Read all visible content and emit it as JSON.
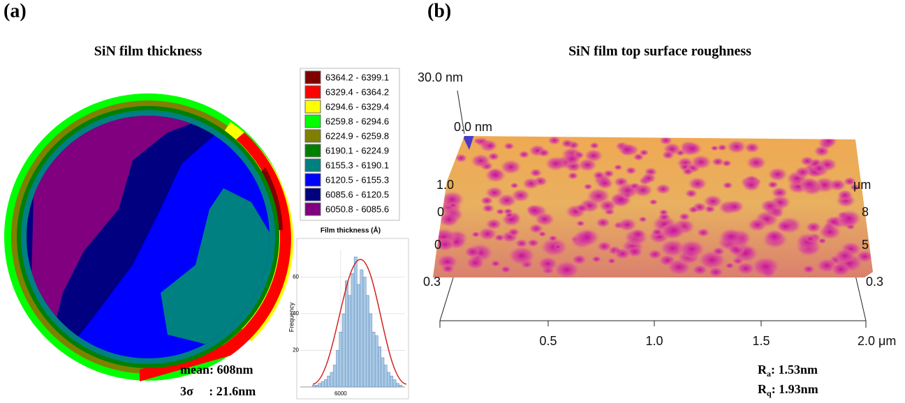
{
  "panel_a": {
    "label": "(a)",
    "title": "SiN film thickness",
    "legend": {
      "items": [
        {
          "label": "6364.2 - 6399.1",
          "color": "#800000"
        },
        {
          "label": "6329.4 - 6364.2",
          "color": "#ff0000"
        },
        {
          "label": "6294.6 - 6329.4",
          "color": "#ffff00"
        },
        {
          "label": "6259.8 - 6294.6",
          "color": "#00ff00"
        },
        {
          "label": "6224.9 - 6259.8",
          "color": "#808000"
        },
        {
          "label": "6190.1 - 6224.9",
          "color": "#008000"
        },
        {
          "label": "6155.3 - 6190.1",
          "color": "#008080"
        },
        {
          "label": "6120.5 - 6155.3",
          "color": "#0000ff"
        },
        {
          "label": "6085.6 - 6120.5",
          "color": "#000080"
        },
        {
          "label": "6050.8 - 6085.6",
          "color": "#800080"
        }
      ],
      "title": "Film thickness (Å)"
    },
    "histogram": {
      "y_label": "Frequency",
      "bins": [
        5905,
        5915,
        5925,
        5935,
        5945,
        5955,
        5965,
        5975,
        5985,
        5995,
        6005,
        6015,
        6025,
        6035,
        6045,
        6055,
        6065,
        6075,
        6085,
        6095,
        6105,
        6115,
        6125,
        6135,
        6145,
        6155,
        6165,
        6175,
        6185,
        6195,
        6205
      ],
      "counts": [
        1,
        1,
        2,
        3,
        4,
        6,
        8,
        12,
        20,
        30,
        40,
        58,
        50,
        62,
        71,
        56,
        64,
        60,
        50,
        40,
        30,
        28,
        22,
        16,
        12,
        8,
        6,
        4,
        2,
        1
      ],
      "color": "#a9c9e6",
      "xlim": [
        5865,
        6215
      ],
      "ylim": [
        0,
        75
      ],
      "xticks": [
        6000
      ],
      "yticks": [
        20,
        40,
        60
      ]
    },
    "stats": {
      "mean": "mean: 608nm",
      "sigma": "3σ     : 21.6nm"
    }
  },
  "panel_b": {
    "label": "(b)",
    "title": "SiN film top surface roughness",
    "z_labels": {
      "top": "30.0 nm",
      "bottom": "0.0 nm"
    },
    "left_labels": [
      "1.0",
      "0",
      "0",
      "0.3"
    ],
    "right_labels": [
      "μm",
      "8",
      "5",
      "0.3"
    ],
    "x_labels": [
      "0.5",
      "1.0",
      "1.5",
      "2.0 μm"
    ],
    "ra": {
      "symbol": "R",
      "subscript": "a",
      "value": ": 1.53nm"
    },
    "rq": {
      "symbol": "R",
      "subscript": "q",
      "value": ": 1.93nm"
    }
  }
}
